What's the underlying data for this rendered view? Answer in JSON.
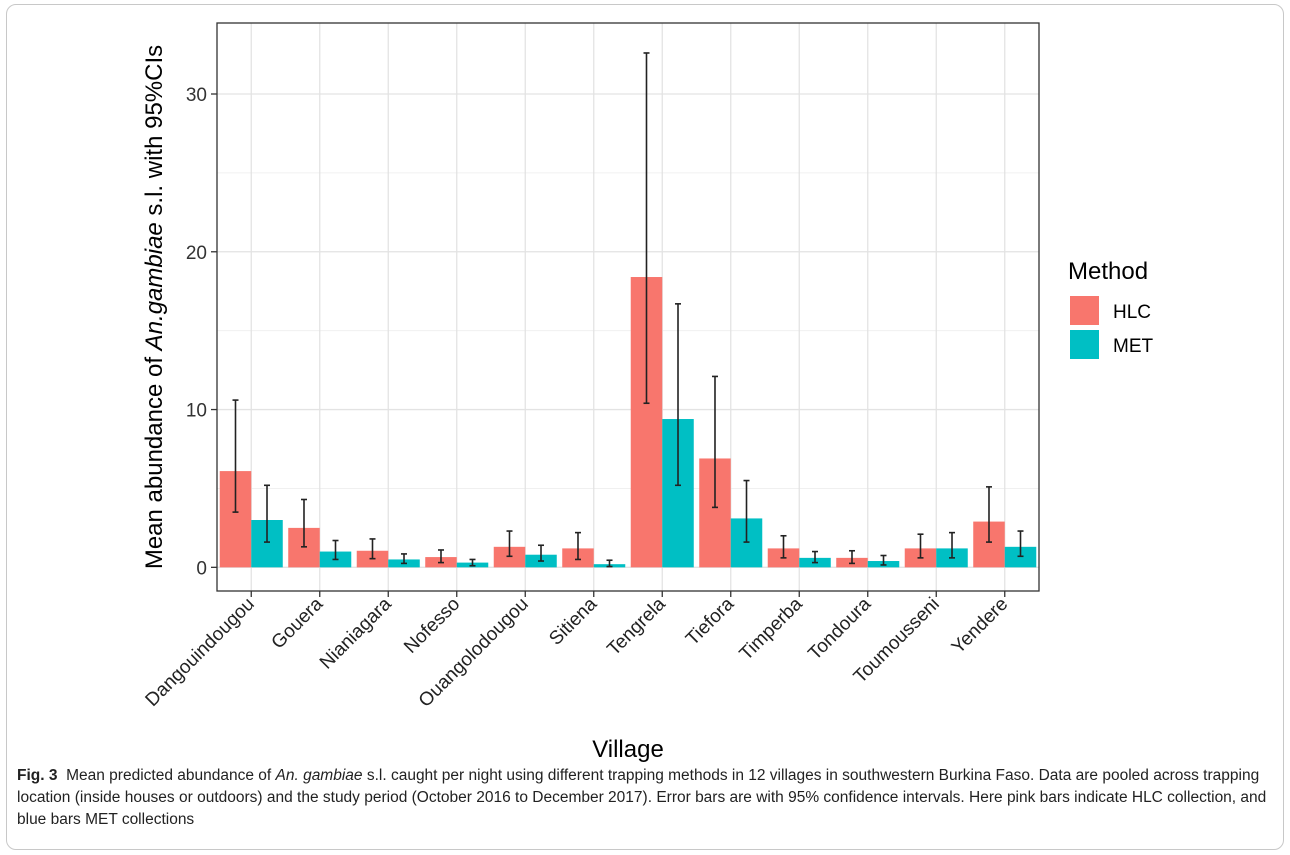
{
  "chart_data": {
    "type": "bar",
    "xlabel": "Village",
    "ylabel_parts": [
      "Mean abundance of ",
      "An.gambiae",
      " s.l. with 95%CIs"
    ],
    "ylim": [
      -1.5,
      34.5
    ],
    "yticks": [
      0,
      10,
      20,
      30
    ],
    "grid": true,
    "legend": {
      "title": "Method",
      "position": "right"
    },
    "categories": [
      "Dangouindougou",
      "Gouera",
      "Nianiagara",
      "Nofesso",
      "Ouangolodougou",
      "Sitiena",
      "Tengrela",
      "Tiefora",
      "Timperba",
      "Tondoura",
      "Toumousseni",
      "Yendere"
    ],
    "series": [
      {
        "name": "HLC",
        "color": "#F8766D",
        "values": [
          6.1,
          2.5,
          1.05,
          0.65,
          1.3,
          1.2,
          18.4,
          6.9,
          1.2,
          0.6,
          1.2,
          2.9
        ],
        "ci_low": [
          3.5,
          1.3,
          0.55,
          0.3,
          0.7,
          0.5,
          10.4,
          3.8,
          0.6,
          0.25,
          0.6,
          1.6
        ],
        "ci_high": [
          10.6,
          4.3,
          1.8,
          1.1,
          2.3,
          2.2,
          32.6,
          12.1,
          2.0,
          1.05,
          2.1,
          5.1
        ]
      },
      {
        "name": "MET",
        "color": "#00BFC4",
        "values": [
          3.0,
          1.0,
          0.5,
          0.3,
          0.8,
          0.2,
          9.4,
          3.1,
          0.6,
          0.4,
          1.2,
          1.3
        ],
        "ci_low": [
          1.6,
          0.5,
          0.25,
          0.1,
          0.4,
          0.05,
          5.2,
          1.6,
          0.3,
          0.15,
          0.6,
          0.7
        ],
        "ci_high": [
          5.2,
          1.7,
          0.85,
          0.5,
          1.4,
          0.45,
          16.7,
          5.5,
          1.0,
          0.75,
          2.2,
          2.3
        ]
      }
    ]
  },
  "caption": {
    "label": "Fig. 3",
    "text_parts": [
      "  Mean predicted abundance of ",
      "An. gambiae",
      " s.l. caught per night using different trapping methods in 12 villages in southwestern Burkina Faso. Data are pooled across trapping location (inside houses or outdoors) and the study period (October 2016 to December 2017). Error bars are with 95% confidence intervals. Here pink bars indicate HLC collection, and blue bars MET collections"
    ]
  }
}
